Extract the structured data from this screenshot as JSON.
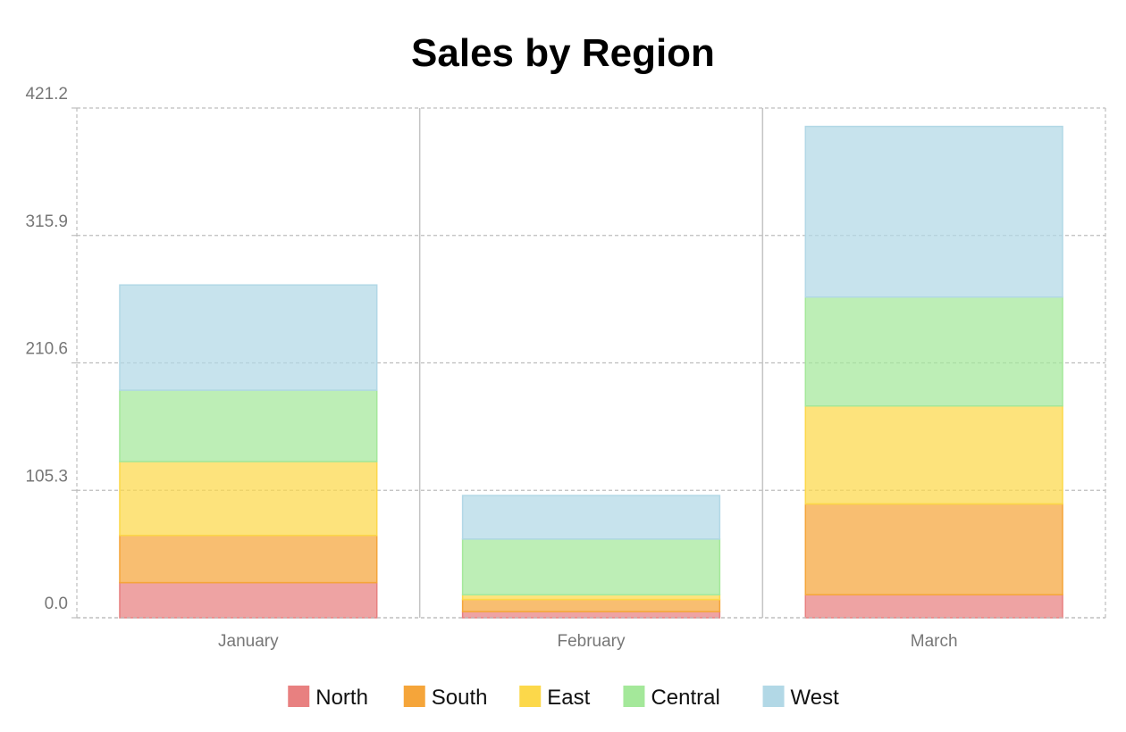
{
  "chart_data": {
    "type": "bar",
    "stacked": true,
    "title": "Sales by Region",
    "xlabel": "",
    "ylabel": "",
    "categories": [
      "January",
      "February",
      "March"
    ],
    "series": [
      {
        "name": "North",
        "color": "#e88080",
        "values": [
          29,
          5,
          19
        ]
      },
      {
        "name": "South",
        "color": "#f5a53a",
        "values": [
          39,
          10,
          75
        ]
      },
      {
        "name": "East",
        "color": "#fcd84a",
        "values": [
          61,
          4,
          81
        ]
      },
      {
        "name": "Central",
        "color": "#a4e89a",
        "values": [
          59,
          46,
          90
        ]
      },
      {
        "name": "West",
        "color": "#b2d8e6",
        "values": [
          87,
          36,
          141
        ]
      }
    ],
    "y_ticks": [
      "0.0",
      "105.3",
      "210.6",
      "315.9",
      "421.2"
    ],
    "ylim": [
      0,
      421.2
    ],
    "grid": true,
    "legend_position": "bottom"
  }
}
